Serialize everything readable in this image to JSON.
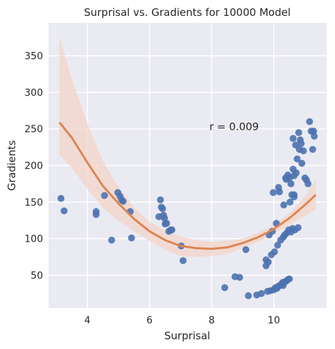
{
  "chart_data": {
    "type": "scatter",
    "title": "Surprisal vs. Gradients for 10000 Model",
    "xlabel": "Surprisal",
    "ylabel": "Gradients",
    "xlim": [
      2.75,
      11.7
    ],
    "ylim": [
      5,
      395
    ],
    "x_ticks": [
      4,
      6,
      8,
      10
    ],
    "y_ticks": [
      50,
      100,
      150,
      200,
      250,
      300,
      350
    ],
    "grid": true,
    "annotation": "r = 0.009",
    "colors": {
      "background": "#EAEAF2",
      "points": "#4C72B0",
      "fit": "#DD8452",
      "band": "#F2D6CB",
      "grid": "#FFFFFF"
    },
    "points": [
      [
        3.15,
        155
      ],
      [
        3.25,
        138
      ],
      [
        4.28,
        133
      ],
      [
        4.28,
        137
      ],
      [
        4.55,
        159
      ],
      [
        4.78,
        98
      ],
      [
        4.98,
        163
      ],
      [
        5.05,
        158
      ],
      [
        5.1,
        153
      ],
      [
        5.15,
        151
      ],
      [
        5.38,
        137
      ],
      [
        5.42,
        101
      ],
      [
        6.3,
        130
      ],
      [
        6.35,
        153
      ],
      [
        6.38,
        143
      ],
      [
        6.42,
        141
      ],
      [
        6.45,
        132
      ],
      [
        6.48,
        128
      ],
      [
        6.5,
        120
      ],
      [
        6.55,
        121
      ],
      [
        6.62,
        110
      ],
      [
        6.68,
        112
      ],
      [
        6.72,
        112
      ],
      [
        7.02,
        90
      ],
      [
        7.08,
        70
      ],
      [
        8.42,
        33
      ],
      [
        8.75,
        48
      ],
      [
        8.9,
        47
      ],
      [
        9.1,
        85
      ],
      [
        9.18,
        22
      ],
      [
        9.45,
        23
      ],
      [
        9.6,
        25
      ],
      [
        9.75,
        71
      ],
      [
        9.75,
        63
      ],
      [
        9.8,
        28
      ],
      [
        9.82,
        68
      ],
      [
        9.85,
        105
      ],
      [
        9.9,
        29
      ],
      [
        9.92,
        78
      ],
      [
        9.95,
        110
      ],
      [
        9.98,
        163
      ],
      [
        10.0,
        30
      ],
      [
        10.02,
        82
      ],
      [
        10.05,
        33
      ],
      [
        10.08,
        121
      ],
      [
        10.1,
        32
      ],
      [
        10.12,
        91
      ],
      [
        10.15,
        35
      ],
      [
        10.15,
        170
      ],
      [
        10.18,
        164
      ],
      [
        10.2,
        36
      ],
      [
        10.22,
        98
      ],
      [
        10.25,
        38
      ],
      [
        10.28,
        40
      ],
      [
        10.3,
        36
      ],
      [
        10.3,
        102
      ],
      [
        10.32,
        146
      ],
      [
        10.35,
        41
      ],
      [
        10.35,
        105
      ],
      [
        10.38,
        183
      ],
      [
        10.4,
        42
      ],
      [
        10.42,
        108
      ],
      [
        10.45,
        44
      ],
      [
        10.45,
        187
      ],
      [
        10.48,
        112
      ],
      [
        10.5,
        45
      ],
      [
        10.5,
        183
      ],
      [
        10.52,
        150
      ],
      [
        10.55,
        109
      ],
      [
        10.58,
        160
      ],
      [
        10.6,
        114
      ],
      [
        10.62,
        237
      ],
      [
        10.62,
        195
      ],
      [
        10.65,
        186
      ],
      [
        10.65,
        160
      ],
      [
        10.68,
        112
      ],
      [
        10.7,
        228
      ],
      [
        10.72,
        190
      ],
      [
        10.75,
        209
      ],
      [
        10.78,
        115
      ],
      [
        10.8,
        245
      ],
      [
        10.82,
        222
      ],
      [
        10.85,
        235
      ],
      [
        10.88,
        230
      ],
      [
        10.9,
        203
      ],
      [
        10.95,
        220
      ],
      [
        11.0,
        183
      ],
      [
        11.05,
        180
      ],
      [
        11.1,
        175
      ],
      [
        11.15,
        260
      ],
      [
        11.2,
        247
      ],
      [
        11.25,
        222
      ],
      [
        11.28,
        247
      ],
      [
        11.3,
        240
      ],
      [
        10.65,
        157
      ],
      [
        10.4,
        181
      ],
      [
        10.55,
        175
      ]
    ],
    "fit_curve": [
      [
        3.1,
        259
      ],
      [
        3.5,
        238
      ],
      [
        4.0,
        204
      ],
      [
        4.5,
        172
      ],
      [
        5.0,
        148
      ],
      [
        5.5,
        127
      ],
      [
        6.0,
        110
      ],
      [
        6.5,
        98
      ],
      [
        7.0,
        90
      ],
      [
        7.5,
        87
      ],
      [
        8.0,
        86
      ],
      [
        8.5,
        88
      ],
      [
        9.0,
        94
      ],
      [
        9.5,
        102
      ],
      [
        10.0,
        113
      ],
      [
        10.5,
        128
      ],
      [
        11.0,
        146
      ],
      [
        11.35,
        160
      ]
    ],
    "band_upper": [
      [
        3.1,
        375
      ],
      [
        3.5,
        318
      ],
      [
        4.0,
        258
      ],
      [
        4.5,
        206
      ],
      [
        5.0,
        170
      ],
      [
        5.5,
        143
      ],
      [
        6.0,
        123
      ],
      [
        6.5,
        111
      ],
      [
        7.0,
        103
      ],
      [
        7.5,
        98
      ],
      [
        8.0,
        96
      ],
      [
        8.5,
        97
      ],
      [
        9.0,
        100
      ],
      [
        9.5,
        108
      ],
      [
        10.0,
        119
      ],
      [
        10.5,
        135
      ],
      [
        11.0,
        158
      ],
      [
        11.35,
        180
      ]
    ],
    "band_lower": [
      [
        3.1,
        214
      ],
      [
        3.5,
        197
      ],
      [
        4.0,
        168
      ],
      [
        4.5,
        142
      ],
      [
        5.0,
        124
      ],
      [
        5.5,
        110
      ],
      [
        6.0,
        97
      ],
      [
        6.5,
        85
      ],
      [
        7.0,
        76
      ],
      [
        7.5,
        75
      ],
      [
        8.0,
        76
      ],
      [
        8.5,
        79
      ],
      [
        9.0,
        87
      ],
      [
        9.5,
        96
      ],
      [
        10.0,
        106
      ],
      [
        10.5,
        119
      ],
      [
        11.0,
        131
      ],
      [
        11.35,
        140
      ]
    ]
  }
}
